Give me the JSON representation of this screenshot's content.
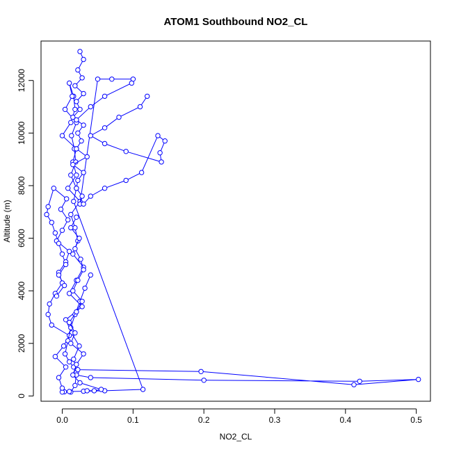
{
  "chart_data": {
    "type": "line",
    "title": "ATOM1 Southbound NO2_CL",
    "xlabel": "NO2_CL",
    "ylabel": "Altitude (m)",
    "xlim": [
      -0.03,
      0.52
    ],
    "ylim": [
      -200,
      13500
    ],
    "xticks": [
      0.0,
      0.1,
      0.2,
      0.3,
      0.4,
      0.5
    ],
    "xtick_labels": [
      "0.0",
      "0.1",
      "0.2",
      "0.3",
      "0.4",
      "0.5"
    ],
    "yticks": [
      0,
      2000,
      4000,
      6000,
      8000,
      10000,
      12000
    ],
    "ytick_labels": [
      "0",
      "2000",
      "4000",
      "6000",
      "8000",
      "10000",
      "12000"
    ],
    "series_color": "#0000ff",
    "marker": "open-circle",
    "series": [
      {
        "x": [
          0.012,
          0.018,
          0.02,
          0.016,
          0.024,
          0.013,
          0.005,
          0.028,
          0.01,
          0.02,
          0.03,
          0.015,
          0.022,
          0.018,
          0.012,
          0.025,
          0.008,
          0.02,
          0.015,
          0.02,
          0.0,
          0.012,
          0.018,
          0.016,
          0.01,
          0.014,
          0.004,
          0.02,
          0.013,
          0.017,
          0.019,
          0.012,
          0.02,
          0.016,
          0.114,
          0.06,
          0.03,
          0.01,
          0.003,
          0.0
        ],
        "y": [
          150,
          400,
          900,
          1400,
          1900,
          2400,
          2900,
          3400,
          3900,
          4400,
          4900,
          5400,
          5900,
          6400,
          6900,
          7400,
          7900,
          8400,
          8900,
          9400,
          9900,
          10400,
          10900,
          11400,
          11900,
          11400,
          10900,
          10400,
          9900,
          9400,
          8900,
          8400,
          7900,
          7400,
          250,
          200,
          180,
          170,
          160,
          150
        ]
      },
      {
        "x": [
          0.025,
          0.03,
          0.022,
          0.028,
          0.018,
          0.03,
          0.02,
          0.025,
          0.015,
          0.03,
          0.022,
          0.027,
          0.02,
          0.035,
          0.015,
          0.03,
          0.022,
          0.02,
          0.028,
          0.025,
          0.05,
          0.07,
          0.1,
          0.098,
          0.06,
          0.04,
          0.02
        ],
        "y": [
          13100,
          12800,
          12400,
          12100,
          11800,
          11500,
          11200,
          10900,
          10600,
          10300,
          10000,
          9700,
          9400,
          9100,
          8800,
          8500,
          8200,
          7900,
          7600,
          7300,
          12050,
          12050,
          12050,
          11900,
          11400,
          11000,
          10500
        ]
      },
      {
        "x": [
          0.0,
          -0.005,
          0.005,
          -0.01,
          0.002,
          0.01,
          -0.015,
          -0.02,
          -0.018,
          -0.01,
          0.0,
          -0.005,
          0.005,
          0.01,
          -0.008,
          0.0,
          0.008,
          -0.002,
          0.006,
          -0.012,
          -0.02,
          -0.022,
          -0.015,
          -0.01,
          -0.005,
          0.0,
          0.005,
          -0.005,
          0.003,
          -0.008
        ],
        "y": [
          300,
          700,
          1100,
          1500,
          1900,
          2300,
          2700,
          3100,
          3500,
          3900,
          4300,
          4700,
          5100,
          5500,
          5900,
          6300,
          6700,
          7100,
          7500,
          7900,
          7200,
          6900,
          6600,
          6200,
          5800,
          5400,
          5000,
          4600,
          4200,
          3800
        ]
      },
      {
        "x": [
          0.12,
          0.11,
          0.08,
          0.06,
          0.04,
          0.06,
          0.09,
          0.14,
          0.138,
          0.145,
          0.135,
          0.112,
          0.09,
          0.06,
          0.04,
          0.03
        ],
        "y": [
          11400,
          11000,
          10600,
          10200,
          9900,
          9600,
          9300,
          8900,
          9250,
          9700,
          9900,
          8500,
          8200,
          7900,
          7600,
          7300
        ]
      },
      {
        "x": [
          0.04,
          0.032,
          0.025,
          0.018,
          0.012,
          0.008,
          0.004,
          0.01,
          0.016,
          0.022,
          0.196,
          0.412,
          0.503,
          0.42,
          0.2,
          0.04,
          0.02
        ],
        "y": [
          4600,
          4100,
          3600,
          3100,
          2600,
          2100,
          1600,
          1300,
          1100,
          1000,
          930,
          430,
          630,
          560,
          600,
          700,
          800
        ]
      },
      {
        "x": [
          0.035,
          0.045,
          0.055,
          0.025,
          0.015,
          0.02,
          0.03,
          0.012,
          0.018,
          0.01,
          0.02,
          0.028,
          0.015,
          0.022,
          0.03,
          0.026,
          0.018,
          0.024,
          0.012,
          0.02
        ],
        "y": [
          200,
          200,
          250,
          500,
          800,
          1200,
          1600,
          2000,
          2400,
          2800,
          3200,
          3600,
          4000,
          4400,
          4800,
          5200,
          5600,
          6000,
          6400,
          6800
        ]
      }
    ]
  }
}
